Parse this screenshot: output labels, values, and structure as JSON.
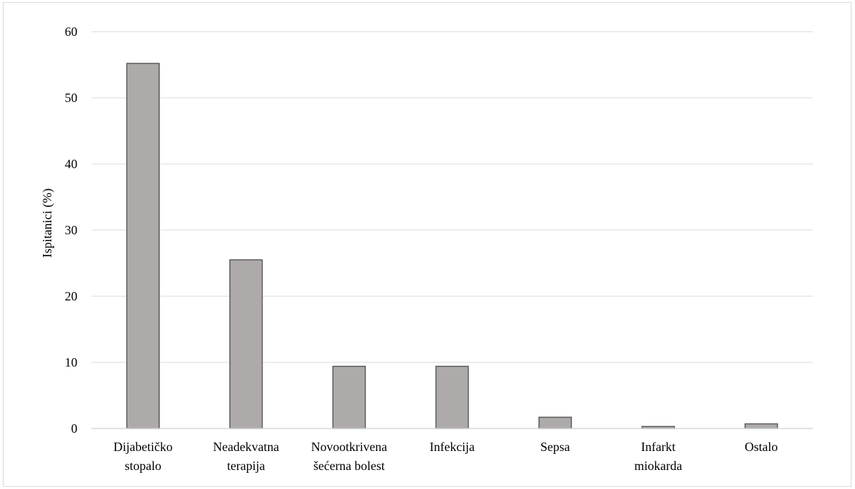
{
  "chart_data": {
    "type": "bar",
    "categories": [
      [
        "Dijabetičko",
        "stopalo"
      ],
      [
        "Neadekvatna",
        "terapija"
      ],
      [
        "Novootkrivena",
        "šećerna bolest"
      ],
      [
        "Infekcija"
      ],
      [
        "Sepsa"
      ],
      [
        "Infarkt",
        "miokarda"
      ],
      [
        "Ostalo"
      ]
    ],
    "values": [
      55.2,
      25.5,
      9.4,
      9.4,
      1.7,
      0.3,
      0.7
    ],
    "ylabel": "Ispitanici (%)",
    "xlabel": "",
    "ylim": [
      0,
      60
    ],
    "yticks": [
      0,
      10,
      20,
      30,
      40,
      50,
      60
    ],
    "grid": true,
    "bar_color": "#aeaaaa",
    "bar_edge_color": "#595959",
    "grid_color": "#d9d9d9"
  }
}
